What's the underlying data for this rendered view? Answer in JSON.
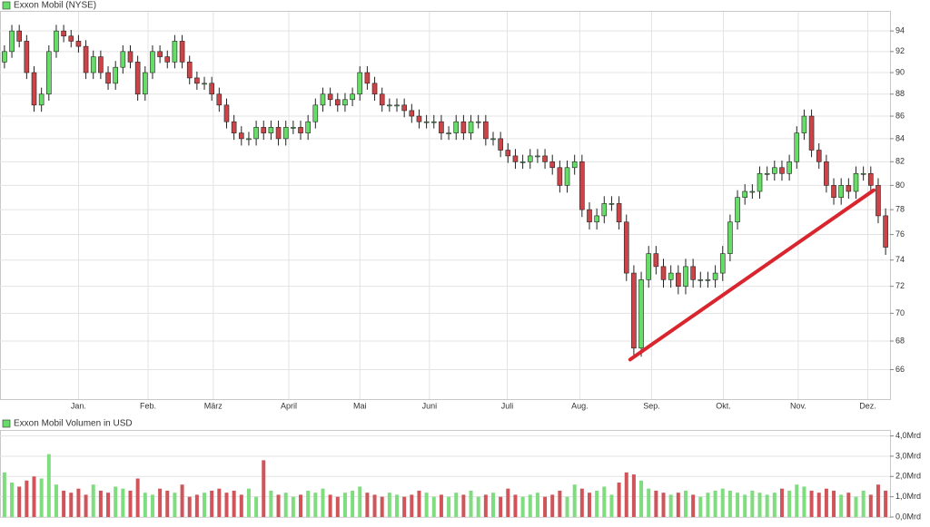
{
  "chart_data": [
    {
      "type": "candlestick",
      "title": "Exxon Mobil (NYSE)",
      "log_scale": true,
      "grid": true,
      "up_color": "#66dd66",
      "down_color": "#cc4448",
      "legend_color": "#66dd66",
      "xlim": [
        -0.6,
        119.6
      ],
      "ylim": [
        64,
        95.9
      ],
      "yticks": [
        66,
        68,
        70,
        72,
        74,
        76,
        78,
        80,
        82,
        84,
        86,
        88,
        90,
        92,
        94
      ],
      "xticks": [
        {
          "value": 10,
          "label": "Jan."
        },
        {
          "value": 19.4,
          "label": "Feb."
        },
        {
          "value": 28.2,
          "label": "März"
        },
        {
          "value": 38.4,
          "label": "April"
        },
        {
          "value": 48,
          "label": "Mai"
        },
        {
          "value": 57.4,
          "label": "Juni"
        },
        {
          "value": 67.9,
          "label": "Juli"
        },
        {
          "value": 77.7,
          "label": "Aug."
        },
        {
          "value": 87.4,
          "label": "Sep."
        },
        {
          "value": 97.1,
          "label": "Okt."
        },
        {
          "value": 107.2,
          "label": "Nov."
        },
        {
          "value": 116.6,
          "label": "Dez."
        }
      ],
      "open": [
        91,
        92,
        94,
        93,
        90,
        87,
        88,
        92,
        94,
        93.5,
        93,
        92.5,
        90,
        91.5,
        90,
        89,
        90.5,
        92,
        91,
        88,
        90,
        92,
        91.5,
        91,
        93,
        91,
        89.5,
        89,
        89,
        88,
        87,
        85.5,
        84.5,
        84,
        84,
        85,
        84.5,
        85,
        84,
        85,
        85,
        84.5,
        85.5,
        87,
        88,
        87.5,
        87,
        87.5,
        88,
        90,
        89,
        88,
        87,
        87,
        87,
        86.5,
        86,
        85.5,
        85.5,
        85.5,
        84.5,
        84.5,
        85.5,
        84.5,
        85.5,
        85.5,
        84,
        84,
        83,
        82.5,
        82,
        82,
        82.5,
        82.5,
        82,
        81.5,
        80,
        81.5,
        82,
        78,
        77,
        77.5,
        78.5,
        78.5,
        77,
        73,
        67.5,
        72.5,
        74.5,
        73.5,
        72.5,
        73,
        72,
        73.5,
        72.5,
        72.5,
        72.5,
        73,
        74.5,
        77,
        79,
        79.5,
        79.5,
        81,
        81,
        81.5,
        81,
        82,
        84.5,
        86,
        83,
        82,
        80,
        79,
        80,
        79.5,
        81,
        81,
        80,
        77.5
      ],
      "high": [
        92.6,
        94.6,
        94.6,
        93.6,
        90.6,
        88.6,
        92.6,
        94.6,
        94.6,
        94.1,
        93.6,
        93.1,
        92.1,
        92.1,
        90.6,
        91.1,
        92.6,
        92.6,
        91.6,
        90.6,
        92.6,
        92.6,
        92.1,
        93.6,
        93.6,
        91.6,
        90.1,
        89.6,
        89.6,
        88.6,
        87.6,
        86.1,
        85.1,
        84.6,
        85.6,
        85.6,
        85.6,
        85.6,
        85.6,
        85.6,
        85.6,
        86.1,
        87.6,
        88.6,
        88.6,
        88.1,
        88.1,
        88.6,
        90.6,
        90.6,
        89.6,
        88.6,
        87.6,
        87.6,
        87.6,
        87.1,
        86.6,
        86.1,
        86.1,
        86.1,
        85.1,
        86.1,
        86.1,
        86.1,
        86.1,
        86.1,
        84.6,
        84.6,
        83.6,
        83.1,
        82.6,
        83.1,
        83.1,
        83.1,
        82.6,
        82.1,
        82.1,
        82.6,
        82.6,
        78.6,
        78.1,
        79.1,
        79.1,
        79.1,
        77.6,
        73.6,
        73.1,
        75.1,
        75.1,
        74.1,
        73.6,
        73.6,
        74.1,
        74.1,
        73.1,
        73.1,
        73.6,
        75.1,
        77.6,
        79.6,
        80.1,
        80.1,
        81.6,
        81.6,
        82.1,
        82.1,
        82.6,
        85.1,
        86.6,
        86.6,
        83.6,
        82.6,
        80.6,
        80.6,
        80.6,
        81.6,
        81.6,
        81.6,
        80.6,
        78.1
      ],
      "low": [
        90.4,
        91.4,
        92.4,
        89.4,
        86.4,
        86.4,
        87.4,
        91.4,
        92.9,
        92.4,
        91.9,
        89.4,
        89.4,
        89.4,
        88.4,
        88.4,
        89.9,
        90.4,
        87.4,
        87.4,
        89.4,
        90.9,
        90.4,
        90.4,
        90.4,
        88.9,
        88.4,
        88.4,
        87.4,
        86.4,
        84.9,
        83.9,
        83.4,
        83.4,
        83.4,
        83.9,
        83.9,
        83.4,
        83.4,
        84.4,
        83.9,
        83.9,
        84.9,
        86.4,
        86.9,
        86.4,
        86.4,
        86.9,
        87.4,
        88.4,
        87.4,
        86.4,
        86.4,
        86.4,
        85.9,
        85.4,
        84.9,
        84.9,
        84.9,
        83.9,
        83.9,
        83.9,
        83.9,
        83.9,
        84.9,
        83.4,
        83.4,
        82.4,
        81.9,
        81.4,
        81.4,
        81.4,
        81.9,
        81.4,
        80.9,
        79.4,
        79.4,
        80.9,
        77.4,
        76.4,
        76.4,
        76.9,
        77.9,
        76.4,
        72.4,
        66.9,
        66.9,
        71.9,
        72.9,
        71.9,
        71.9,
        71.4,
        71.4,
        71.9,
        71.9,
        71.9,
        71.9,
        72.4,
        73.9,
        76.4,
        78.4,
        78.9,
        78.9,
        80.4,
        80.4,
        80.4,
        80.4,
        81.4,
        83.9,
        82.4,
        81.4,
        79.4,
        78.4,
        78.4,
        78.9,
        78.9,
        80.4,
        79.4,
        76.9,
        74.4
      ],
      "close": [
        92,
        94,
        93,
        90,
        87,
        88,
        92,
        94,
        93.5,
        93,
        92.5,
        90,
        91.5,
        90,
        89,
        90.5,
        92,
        91,
        88,
        90,
        92,
        91.5,
        91,
        93,
        91,
        89.5,
        89,
        89,
        88,
        87,
        85.5,
        84.5,
        84,
        84,
        85,
        84.5,
        85,
        84,
        85,
        85,
        84.5,
        85.5,
        87,
        88,
        87.5,
        87,
        87.5,
        88,
        90,
        89,
        88,
        87,
        87,
        87,
        86.5,
        86,
        85.5,
        85.5,
        85.5,
        84.5,
        84.5,
        85.5,
        84.5,
        85.5,
        85.5,
        84,
        84,
        83,
        82.5,
        82,
        82,
        82.5,
        82.5,
        82,
        81.5,
        80,
        81.5,
        82,
        78,
        77,
        77.5,
        78.5,
        78.5,
        77,
        73,
        67.5,
        72.5,
        74.5,
        73.5,
        72.5,
        73,
        72,
        73.5,
        72.5,
        72.5,
        72.5,
        73,
        74.5,
        77,
        79,
        79.5,
        79.5,
        81,
        81,
        81.5,
        81,
        82,
        84.5,
        86,
        83,
        82,
        80,
        79,
        80,
        79.5,
        81,
        81,
        80,
        77.5,
        75
      ],
      "trendline": {
        "x": [
          84.5,
          117.4
        ],
        "y": [
          66.7,
          79.6
        ],
        "color": "#d9262e"
      }
    },
    {
      "type": "bar",
      "title": "Exxon Mobil Volumen in USD",
      "legend_color": "#66dd66",
      "up_color": "#7fdc7f",
      "down_color": "#d0555a",
      "grid": true,
      "xlim": [
        -0.6,
        119.6
      ],
      "ylim": [
        0,
        4.25
      ],
      "yticks": [
        {
          "value": 0,
          "label": "0,0Mrd"
        },
        {
          "value": 1,
          "label": "1,0Mrd"
        },
        {
          "value": 2,
          "label": "2,0Mrd"
        },
        {
          "value": 3,
          "label": "3,0Mrd"
        },
        {
          "value": 4,
          "label": "4,0Mrd"
        }
      ],
      "values": [
        2.2,
        1.7,
        1.5,
        1.8,
        2.0,
        1.9,
        3.1,
        1.6,
        1.3,
        1.2,
        1.4,
        1.1,
        1.6,
        1.3,
        1.2,
        1.5,
        1.4,
        1.3,
        1.9,
        1.2,
        1.1,
        1.4,
        1.3,
        1.2,
        1.6,
        1.0,
        1.1,
        1.2,
        1.3,
        1.4,
        1.2,
        1.3,
        1.1,
        1.4,
        1.0,
        2.8,
        1.3,
        1.1,
        1.2,
        1.0,
        1.1,
        1.3,
        1.2,
        1.4,
        1.1,
        1.0,
        1.2,
        1.3,
        1.5,
        1.2,
        1.1,
        1.0,
        1.2,
        1.1,
        1.0,
        1.1,
        1.3,
        1.2,
        1.0,
        1.1,
        1.0,
        1.2,
        1.1,
        1.3,
        1.0,
        1.1,
        1.2,
        1.0,
        1.4,
        1.1,
        1.0,
        1.1,
        1.2,
        1.0,
        1.1,
        1.3,
        1.0,
        1.6,
        1.4,
        1.2,
        1.3,
        1.5,
        1.1,
        1.7,
        2.2,
        2.1,
        1.8,
        1.4,
        1.3,
        1.2,
        1.1,
        1.2,
        1.3,
        1.1,
        1.0,
        1.2,
        1.3,
        1.4,
        1.3,
        1.2,
        1.1,
        1.3,
        1.2,
        1.1,
        1.2,
        1.4,
        1.3,
        1.6,
        1.5,
        1.3,
        1.2,
        1.4,
        1.3,
        1.1,
        1.2,
        1.0,
        1.3,
        1.1,
        1.6,
        1.3
      ]
    }
  ]
}
